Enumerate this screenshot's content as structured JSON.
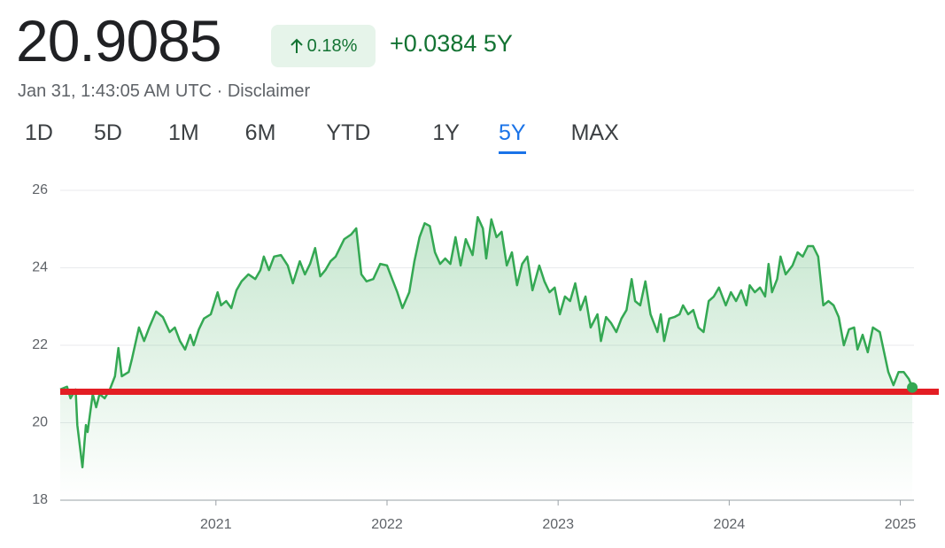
{
  "header": {
    "price": "20.9085",
    "change_percent": "0.18%",
    "change": "+0.0384",
    "period": "5Y",
    "timestamp": "Jan 31, 1:43:05 AM UTC",
    "separator": "·",
    "disclaimer": "Disclaimer"
  },
  "ranges": {
    "items": [
      "1D",
      "5D",
      "1M",
      "6M",
      "YTD",
      "1Y",
      "5Y",
      "MAX"
    ],
    "active": 6
  },
  "chart_data": {
    "type": "line",
    "color": "#34a853",
    "x": [
      2020.09,
      2020.13,
      2020.15,
      2020.18,
      2020.19,
      2020.22,
      2020.24,
      2020.25,
      2020.28,
      2020.3,
      2020.32,
      2020.35,
      2020.38,
      2020.41,
      2020.43,
      2020.45,
      2020.49,
      2020.51,
      2020.55,
      2020.58,
      2020.61,
      2020.65,
      2020.69,
      2020.73,
      2020.76,
      2020.79,
      2020.82,
      2020.85,
      2020.87,
      2020.9,
      2020.93,
      2020.97,
      2021.01,
      2021.03,
      2021.06,
      2021.09,
      2021.12,
      2021.15,
      2021.19,
      2021.23,
      2021.26,
      2021.28,
      2021.31,
      2021.34,
      2021.38,
      2021.42,
      2021.45,
      2021.49,
      2021.52,
      2021.55,
      2021.58,
      2021.61,
      2021.64,
      2021.67,
      2021.7,
      2021.75,
      2021.79,
      2021.82,
      2021.85,
      2021.88,
      2021.92,
      2021.96,
      2022.0,
      2022.03,
      2022.06,
      2022.09,
      2022.13,
      2022.16,
      2022.19,
      2022.22,
      2022.25,
      2022.28,
      2022.31,
      2022.34,
      2022.37,
      2022.4,
      2022.43,
      2022.46,
      2022.5,
      2022.53,
      2022.56,
      2022.58,
      2022.61,
      2022.64,
      2022.67,
      2022.7,
      2022.73,
      2022.76,
      2022.79,
      2022.82,
      2022.85,
      2022.89,
      2022.92,
      2022.95,
      2022.98,
      2023.01,
      2023.04,
      2023.07,
      2023.1,
      2023.13,
      2023.16,
      2023.19,
      2023.23,
      2023.25,
      2023.28,
      2023.31,
      2023.34,
      2023.37,
      2023.4,
      2023.43,
      2023.45,
      2023.48,
      2023.51,
      2023.54,
      2023.58,
      2023.6,
      2023.62,
      2023.65,
      2023.68,
      2023.71,
      2023.73,
      2023.76,
      2023.79,
      2023.82,
      2023.85,
      2023.88,
      2023.91,
      2023.94,
      2023.98,
      2024.01,
      2024.04,
      2024.07,
      2024.1,
      2024.12,
      2024.15,
      2024.18,
      2024.21,
      2024.23,
      2024.25,
      2024.28,
      2024.3,
      2024.33,
      2024.37,
      2024.4,
      2024.43,
      2024.46,
      2024.49,
      2024.52,
      2024.55,
      2024.58,
      2024.61,
      2024.64,
      2024.67,
      2024.7,
      2024.73,
      2024.75,
      2024.78,
      2024.81,
      2024.84,
      2024.88,
      2024.93,
      2024.96,
      2024.99,
      2025.02,
      2025.05,
      2025.07
    ],
    "values": [
      20.86,
      20.93,
      20.63,
      20.86,
      19.94,
      18.85,
      19.94,
      19.76,
      20.74,
      20.4,
      20.74,
      20.63,
      20.86,
      21.2,
      21.93,
      21.2,
      21.31,
      21.66,
      22.46,
      22.11,
      22.46,
      22.87,
      22.73,
      22.34,
      22.46,
      22.11,
      21.89,
      22.27,
      22.0,
      22.41,
      22.69,
      22.8,
      23.37,
      23.03,
      23.14,
      22.96,
      23.42,
      23.65,
      23.83,
      23.71,
      23.94,
      24.29,
      23.94,
      24.29,
      24.33,
      24.06,
      23.6,
      24.17,
      23.83,
      24.1,
      24.51,
      23.78,
      23.94,
      24.17,
      24.29,
      24.74,
      24.86,
      25.02,
      23.83,
      23.65,
      23.71,
      24.1,
      24.06,
      23.71,
      23.37,
      22.96,
      23.37,
      24.17,
      24.79,
      25.15,
      25.08,
      24.4,
      24.1,
      24.24,
      24.1,
      24.79,
      24.06,
      24.74,
      24.33,
      25.31,
      25.02,
      24.24,
      25.25,
      24.79,
      24.93,
      24.06,
      24.4,
      23.55,
      24.1,
      24.29,
      23.42,
      24.06,
      23.65,
      23.37,
      23.49,
      22.8,
      23.26,
      23.14,
      23.6,
      22.91,
      23.26,
      22.46,
      22.8,
      22.11,
      22.73,
      22.57,
      22.34,
      22.69,
      22.91,
      23.71,
      23.14,
      23.03,
      23.65,
      22.8,
      22.34,
      22.8,
      22.11,
      22.69,
      22.73,
      22.8,
      23.03,
      22.8,
      22.91,
      22.46,
      22.34,
      23.14,
      23.26,
      23.49,
      23.03,
      23.37,
      23.14,
      23.42,
      23.03,
      23.55,
      23.37,
      23.49,
      23.26,
      24.1,
      23.37,
      23.71,
      24.29,
      23.83,
      24.06,
      24.4,
      24.29,
      24.56,
      24.56,
      24.29,
      23.03,
      23.14,
      23.03,
      22.73,
      22.0,
      22.41,
      22.46,
      21.89,
      22.27,
      21.82,
      22.46,
      22.34,
      21.31,
      20.97,
      21.31,
      21.31,
      21.13,
      20.91
    ],
    "xlim": [
      2020.09,
      2025.08
    ],
    "xticks": [
      2021,
      2022,
      2023,
      2024,
      2025
    ],
    "ylim": [
      18,
      26
    ],
    "yticks": [
      18,
      20,
      22,
      24,
      26
    ],
    "grid": true,
    "reference_line": {
      "value": 20.8,
      "color": "#e31e24"
    }
  }
}
